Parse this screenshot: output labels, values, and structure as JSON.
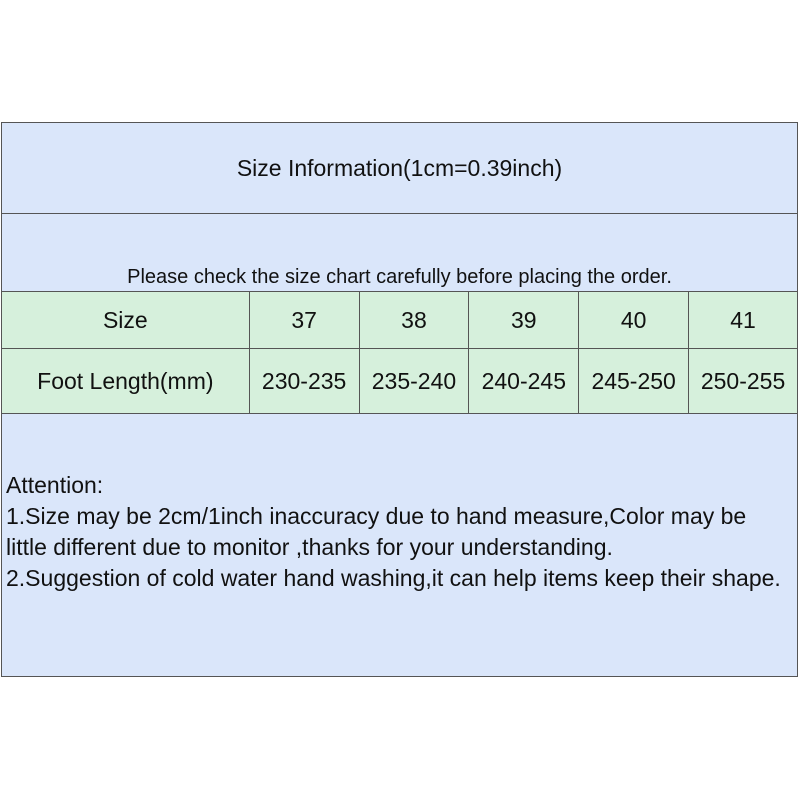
{
  "title": "Size Information(1cm=0.39inch)",
  "note": "Please check the size chart carefully before placing the order.",
  "table": {
    "size_label": "Size",
    "sizes": [
      "37",
      "38",
      "39",
      "40",
      "41"
    ],
    "length_label": "Foot Length(mm)",
    "lengths": [
      "230-235",
      "235-240",
      "240-245",
      "245-250",
      "250-255"
    ]
  },
  "attention": {
    "heading": "Attention:",
    "items": [
      "1.Size may be 2cm/1inch inaccuracy due to hand measure,Color may be little different due to monitor ,thanks for your understanding.",
      "2.Suggestion of cold water hand washing,it can help items keep their shape."
    ]
  },
  "colors": {
    "blue": "#dae6fa",
    "green": "#d6f0dc",
    "border": "#555555"
  }
}
